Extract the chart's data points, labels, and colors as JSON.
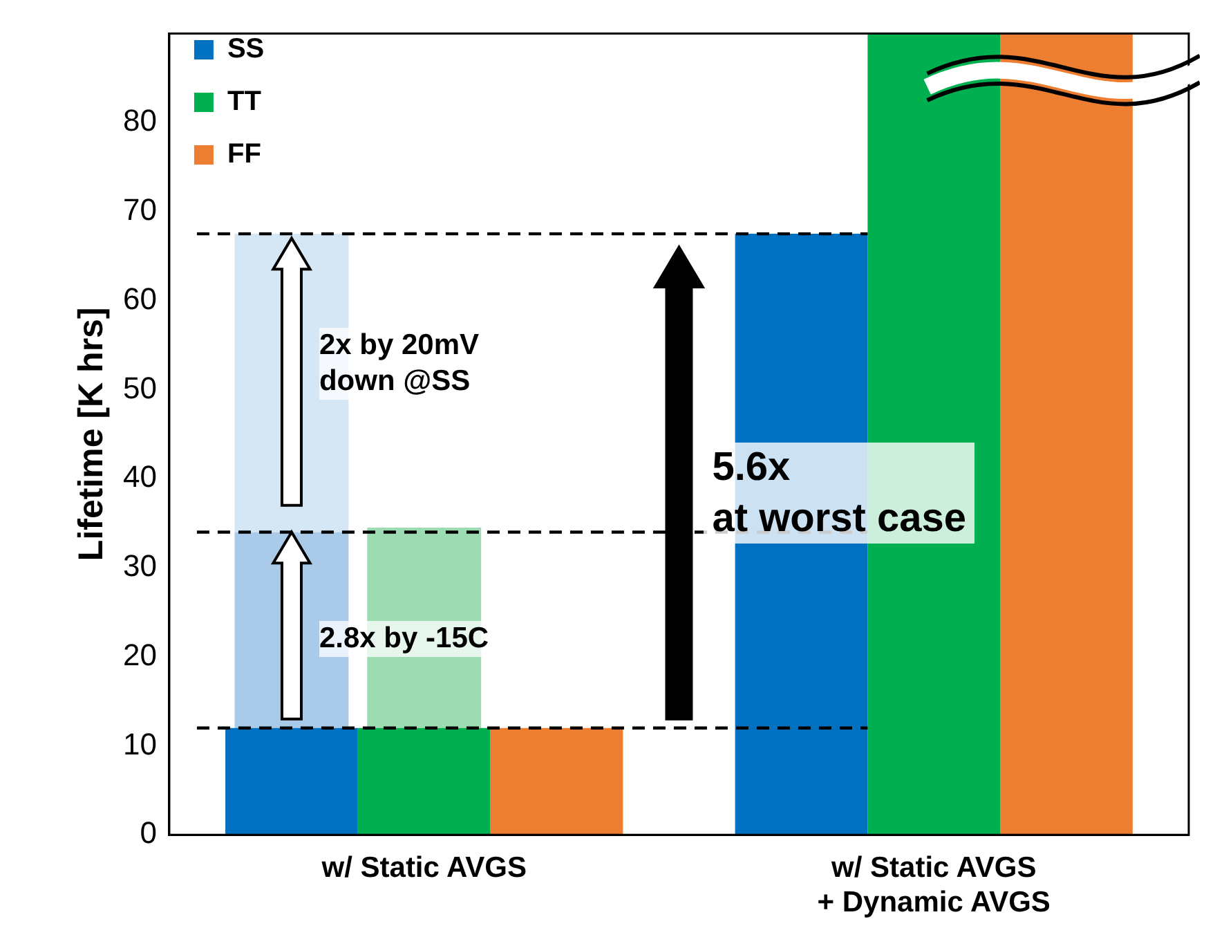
{
  "chart_data": {
    "type": "bar",
    "categories": [
      "w/ Static AVGS",
      "w/ Static AVGS\n+ Dynamic AVGS"
    ],
    "ylabel": "Lifetime [K hrs]",
    "ylim": [
      0,
      90
    ],
    "yticks": [
      0,
      10,
      20,
      30,
      40,
      50,
      60,
      70,
      80
    ],
    "grid": false,
    "legend": "top left",
    "series": [
      {
        "name": "SS",
        "color": "#0070c0",
        "values": [
          12,
          67.5
        ]
      },
      {
        "color": "#a9cbe9",
        "values": [
          22,
          null
        ],
        "base": [
          12,
          null
        ]
      },
      {
        "color": "#d5e6f5",
        "values": [
          33.5,
          null
        ],
        "base": [
          34,
          null
        ]
      },
      {
        "name": "TT",
        "color": "#00b050",
        "values": [
          12,
          90
        ]
      },
      {
        "color": "#9ddcb2",
        "values": [
          22.5,
          null
        ],
        "base": [
          12,
          null
        ]
      },
      {
        "name": "FF",
        "color": "#ed7d31",
        "values": [
          12,
          90
        ]
      }
    ],
    "ref_lines": [
      {
        "axis": "y",
        "value": 67.5,
        "line_style": "dashed",
        "color": "#000000"
      },
      {
        "axis": "y",
        "value": 34,
        "line_style": "dashed",
        "color": "#000000"
      },
      {
        "axis": "y",
        "value": 12,
        "line_style": "dashed",
        "color": "#000000"
      }
    ],
    "annotations": [
      "2x by 20mV\ndown @SS",
      "2.8x by -15C",
      "5.6x\nat worst case"
    ]
  }
}
